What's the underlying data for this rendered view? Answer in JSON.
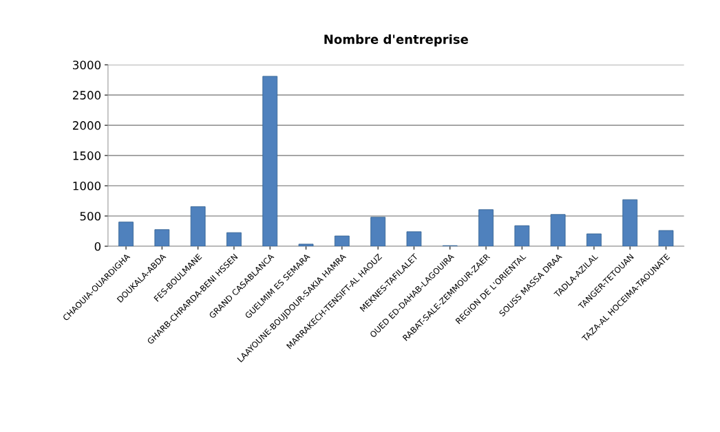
{
  "chart_data": {
    "type": "bar",
    "title": "Nombre d'entreprise",
    "categories": [
      "CHAOUIA-OUARDIGHA",
      "DOUKALA-ABDA",
      "FES-BOULMANE",
      "GHARB-CHRARDA-BENI HSSEN",
      "GRAND CASABLANCA",
      "GUELMIM ES SEMARA",
      "LAAYOUNE-BOUJDOUR-SAKIA HAMRA",
      "MARRAKECH-TENSIFT-AL HAOUZ",
      "MEKNES-TAFILALET",
      "OUED ED-DAHAB-LAGOUIRA",
      "RABAT-SALE-ZEMMOUR-ZAER",
      "REGION DE L'ORIENTAL",
      "SOUSS MASSA DRAA",
      "TADLA-AZILAL",
      "TANGER-TETOUAN",
      "TAZA-AL HOCEIMA-TAOUNATE"
    ],
    "values": [
      400,
      275,
      655,
      225,
      2810,
      35,
      170,
      480,
      240,
      10,
      605,
      340,
      525,
      205,
      770,
      260
    ],
    "color": "#4f81bd",
    "ylim": [
      0,
      3000
    ],
    "yticks": [
      0,
      500,
      1000,
      1500,
      2000,
      2500,
      3000
    ],
    "grid": "y"
  }
}
